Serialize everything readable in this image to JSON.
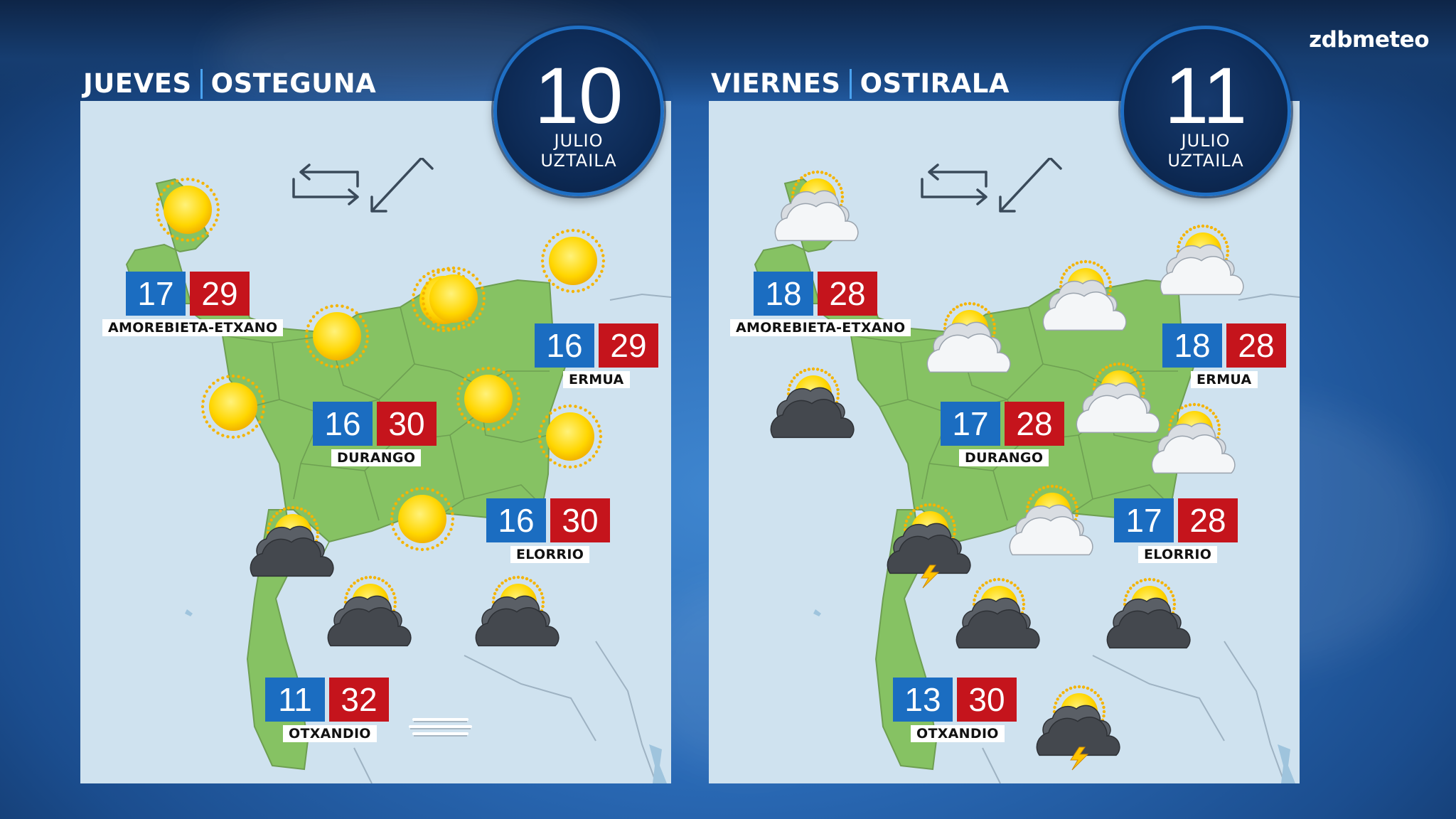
{
  "brand": {
    "part1": "zdb",
    "part2": "meteo"
  },
  "days": [
    {
      "title_es": "JUEVES",
      "title_eu": "OSTEGUNA",
      "date": {
        "day": "10",
        "month_es": "JULIO",
        "month_eu": "UZTAILA"
      },
      "stations": [
        {
          "name": "AMOREBIETA-ETXANO",
          "min": "17",
          "max": "29"
        },
        {
          "name": "ERMUA",
          "min": "16",
          "max": "29"
        },
        {
          "name": "DURANGO",
          "min": "16",
          "max": "30"
        },
        {
          "name": "ELORRIO",
          "min": "16",
          "max": "30"
        },
        {
          "name": "OTXANDIO",
          "min": "11",
          "max": "32"
        }
      ],
      "weather_icons": [
        "sun",
        "sun",
        "sun",
        "sun",
        "sun",
        "sun",
        "sun",
        "sun",
        "sun",
        "sun-cloud-dark",
        "sun-cloud-dark",
        "sun-cloud-dark",
        "fog"
      ]
    },
    {
      "title_es": "VIERNES",
      "title_eu": "OSTIRALA",
      "date": {
        "day": "11",
        "month_es": "JULIO",
        "month_eu": "UZTAILA"
      },
      "stations": [
        {
          "name": "AMOREBIETA-ETXANO",
          "min": "18",
          "max": "28"
        },
        {
          "name": "ERMUA",
          "min": "18",
          "max": "28"
        },
        {
          "name": "DURANGO",
          "min": "17",
          "max": "28"
        },
        {
          "name": "ELORRIO",
          "min": "17",
          "max": "28"
        },
        {
          "name": "OTXANDIO",
          "min": "13",
          "max": "30"
        }
      ],
      "weather_icons": [
        "sun-cloud",
        "sun-cloud",
        "sun-cloud",
        "sun-cloud",
        "sun-cloud",
        "sun-cloud",
        "sun-cloud",
        "sun-cloud-dark",
        "sun-cloud-storm",
        "sun-cloud-dark",
        "sun-cloud-dark",
        "sun-cloud-storm"
      ]
    }
  ],
  "colors": {
    "min_temp": "#1b6dc1",
    "max_temp": "#c5141c",
    "land": "#86c263",
    "sea": "#cfe2ef"
  }
}
